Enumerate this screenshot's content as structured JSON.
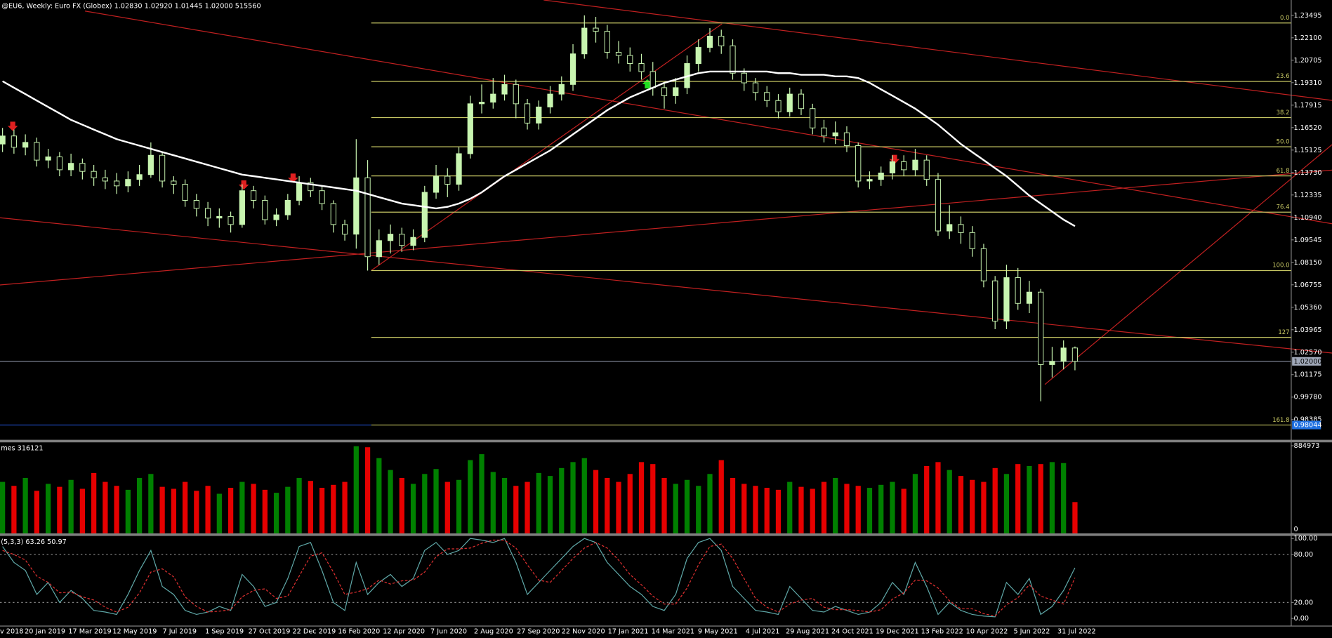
{
  "chart_data": {
    "type": "candlestick",
    "title": "@EU6, Weekly:  Euro FX (Globex)  1.02830 1.02920 1.01445 1.02000  515560",
    "open": [
      1.155,
      1.16,
      1.153,
      1.156,
      1.145,
      1.147,
      1.139,
      1.143,
      1.138,
      1.134,
      1.132,
      1.129,
      1.133,
      1.136,
      1.148,
      1.132,
      1.13,
      1.12,
      1.115,
      1.109,
      1.11,
      1.105,
      1.126,
      1.12,
      1.108,
      1.111,
      1.12,
      1.131,
      1.126,
      1.118,
      1.105,
      1.099,
      1.134,
      1.085,
      1.095,
      1.099,
      1.092,
      1.097,
      1.125,
      1.135,
      1.13,
      1.149,
      1.18,
      1.181,
      1.186,
      1.192,
      1.18,
      1.168,
      1.178,
      1.186,
      1.192,
      1.211,
      1.227,
      1.225,
      1.212,
      1.21,
      1.205,
      1.2,
      1.19,
      1.185,
      1.19,
      1.205,
      1.215,
      1.222,
      1.216,
      1.199,
      1.193,
      1.187,
      1.182,
      1.175,
      1.186,
      1.177,
      1.165,
      1.16,
      1.162,
      1.154,
      1.132,
      1.133,
      1.137,
      1.144,
      1.139,
      1.145,
      1.133,
      1.101,
      1.105,
      1.1,
      1.09,
      1.07,
      1.045,
      1.072,
      1.056,
      1.063,
      1.018,
      1.02,
      1.0283
    ],
    "high": [
      1.165,
      1.164,
      1.161,
      1.159,
      1.152,
      1.15,
      1.149,
      1.146,
      1.142,
      1.139,
      1.137,
      1.138,
      1.142,
      1.156,
      1.15,
      1.135,
      1.133,
      1.124,
      1.119,
      1.115,
      1.113,
      1.13,
      1.129,
      1.123,
      1.115,
      1.124,
      1.135,
      1.134,
      1.129,
      1.12,
      1.108,
      1.158,
      1.145,
      1.102,
      1.105,
      1.103,
      1.102,
      1.129,
      1.142,
      1.14,
      1.153,
      1.185,
      1.192,
      1.196,
      1.198,
      1.195,
      1.183,
      1.182,
      1.191,
      1.197,
      1.217,
      1.2349,
      1.234,
      1.229,
      1.219,
      1.215,
      1.211,
      1.206,
      1.193,
      1.196,
      1.21,
      1.22,
      1.227,
      1.226,
      1.22,
      1.202,
      1.196,
      1.191,
      1.186,
      1.19,
      1.189,
      1.18,
      1.17,
      1.169,
      1.166,
      1.156,
      1.138,
      1.141,
      1.148,
      1.148,
      1.152,
      1.148,
      1.137,
      1.117,
      1.11,
      1.104,
      1.093,
      1.073,
      1.08,
      1.078,
      1.07,
      1.065,
      1.029,
      1.033,
      1.0292
    ],
    "low": [
      1.15,
      1.149,
      1.148,
      1.141,
      1.14,
      1.135,
      1.135,
      1.133,
      1.129,
      1.127,
      1.124,
      1.125,
      1.129,
      1.134,
      1.128,
      1.124,
      1.116,
      1.11,
      1.104,
      1.103,
      1.1,
      1.103,
      1.115,
      1.105,
      1.104,
      1.108,
      1.117,
      1.122,
      1.114,
      1.1,
      1.095,
      1.09,
      1.0764,
      1.08,
      1.087,
      1.088,
      1.089,
      1.094,
      1.121,
      1.122,
      1.126,
      1.146,
      1.174,
      1.177,
      1.182,
      1.171,
      1.164,
      1.164,
      1.174,
      1.182,
      1.188,
      1.208,
      1.218,
      1.208,
      1.205,
      1.2,
      1.195,
      1.185,
      1.177,
      1.18,
      1.186,
      1.2,
      1.212,
      1.211,
      1.195,
      1.188,
      1.182,
      1.178,
      1.171,
      1.172,
      1.173,
      1.161,
      1.156,
      1.155,
      1.15,
      1.128,
      1.127,
      1.129,
      1.133,
      1.135,
      1.135,
      1.129,
      1.098,
      1.096,
      1.093,
      1.085,
      1.066,
      1.04,
      1.04,
      1.052,
      1.05,
      0.9952,
      1.01,
      1.015,
      1.01445
    ],
    "close": [
      1.16,
      1.153,
      1.156,
      1.145,
      1.147,
      1.139,
      1.143,
      1.138,
      1.134,
      1.132,
      1.129,
      1.133,
      1.136,
      1.148,
      1.132,
      1.13,
      1.12,
      1.115,
      1.109,
      1.11,
      1.105,
      1.126,
      1.12,
      1.108,
      1.111,
      1.12,
      1.131,
      1.126,
      1.118,
      1.105,
      1.099,
      1.134,
      1.085,
      1.095,
      1.099,
      1.092,
      1.097,
      1.125,
      1.135,
      1.13,
      1.149,
      1.18,
      1.181,
      1.186,
      1.192,
      1.18,
      1.168,
      1.178,
      1.186,
      1.192,
      1.211,
      1.227,
      1.225,
      1.212,
      1.21,
      1.205,
      1.2,
      1.19,
      1.185,
      1.19,
      1.205,
      1.215,
      1.222,
      1.216,
      1.199,
      1.193,
      1.187,
      1.182,
      1.175,
      1.186,
      1.177,
      1.165,
      1.16,
      1.162,
      1.154,
      1.132,
      1.133,
      1.137,
      1.144,
      1.139,
      1.145,
      1.133,
      1.101,
      1.105,
      1.1,
      1.09,
      1.07,
      1.045,
      1.072,
      1.056,
      1.063,
      1.018,
      1.02,
      1.0283,
      1.02
    ],
    "ma": [
      1.194,
      1.19,
      1.186,
      1.182,
      1.178,
      1.174,
      1.17,
      1.167,
      1.164,
      1.161,
      1.158,
      1.156,
      1.154,
      1.152,
      1.15,
      1.148,
      1.146,
      1.144,
      1.142,
      1.14,
      1.138,
      1.136,
      1.135,
      1.134,
      1.133,
      1.132,
      1.131,
      1.13,
      1.129,
      1.128,
      1.127,
      1.126,
      1.124,
      1.122,
      1.12,
      1.118,
      1.117,
      1.116,
      1.115,
      1.116,
      1.118,
      1.121,
      1.125,
      1.13,
      1.135,
      1.139,
      1.143,
      1.147,
      1.151,
      1.156,
      1.161,
      1.166,
      1.171,
      1.176,
      1.18,
      1.184,
      1.187,
      1.19,
      1.193,
      1.195,
      1.197,
      1.199,
      1.2,
      1.2,
      1.2,
      1.2,
      1.2,
      1.2,
      1.199,
      1.199,
      1.198,
      1.198,
      1.198,
      1.197,
      1.197,
      1.196,
      1.193,
      1.189,
      1.185,
      1.181,
      1.177,
      1.172,
      1.167,
      1.161,
      1.155,
      1.15,
      1.145,
      1.14,
      1.135,
      1.129,
      1.123,
      1.118,
      1.113,
      1.108,
      1.104
    ],
    "candle_color": "#c8f5b0",
    "ma_color": "#ffffff",
    "fib_color": "#c8c864",
    "grid": false,
    "ylim": [
      0.97127,
      1.24446
    ],
    "yticks": [
      {
        "value": 0.98385,
        "label": "0.98385"
      },
      {
        "value": 0.9978,
        "label": "0.99780"
      },
      1.01175,
      {
        "value": 1.0257,
        "label": "1.02570"
      },
      1.03965,
      {
        "value": 1.0536,
        "label": "1.05360"
      },
      1.06755,
      {
        "value": 1.0815,
        "label": "1.08150"
      },
      1.09545,
      {
        "value": 1.1094,
        "label": "1.10940"
      },
      1.12335,
      {
        "value": 1.1373,
        "label": "1.13730"
      },
      1.15125,
      {
        "value": 1.1652,
        "label": "1.16520"
      },
      1.17915,
      {
        "value": 1.1931,
        "label": "1.19310"
      },
      1.20705,
      {
        "value": 1.221,
        "label": "1.22100"
      },
      1.23495
    ],
    "x_labels": [
      "v 2018",
      "20 Jan 2019",
      "17 Mar 2019",
      "12 May 2019",
      "7 Jul 2019",
      "1 Sep 2019",
      "27 Oct 2019",
      "22 Dec 2019",
      "16 Feb 2020",
      "12 Apr 2020",
      "7 Jun 2020",
      "2 Aug 2020",
      "27 Sep 2020",
      "22 Nov 2020",
      "17 Jan 2021",
      "14 Mar 2021",
      "9 May 2021",
      "4 Jul 2021",
      "29 Aug 2021",
      "24 Oct 2021",
      "19 Dec 2021",
      "13 Feb 2022",
      "10 Apr 2022",
      "5 Jun 2022",
      "31 Jul 2022"
    ],
    "last_price": {
      "value": 1.02,
      "label": "1.02000"
    },
    "fib_levels": [
      {
        "label": "0.0",
        "price": 1.2302
      },
      {
        "label": "23.6",
        "price": 1.1939
      },
      {
        "label": "38.2",
        "price": 1.1714
      },
      {
        "label": "50.0",
        "price": 1.1533
      },
      {
        "label": "61.8",
        "price": 1.1352
      },
      {
        "label": "76.4",
        "price": 1.1127
      },
      {
        "label": "100.0",
        "price": 1.0764
      },
      {
        "label": "127",
        "price": 1.0349
      },
      {
        "label": "161.8",
        "price": 0.98044,
        "price_label": "0.98044"
      }
    ],
    "volume": {
      "label": "mes 316121",
      "values": [
        520000,
        480000,
        560000,
        430000,
        500000,
        470000,
        540000,
        450000,
        610000,
        520000,
        480000,
        440000,
        560000,
        600000,
        470000,
        450000,
        520000,
        430000,
        480000,
        400000,
        460000,
        520000,
        500000,
        440000,
        410000,
        470000,
        560000,
        530000,
        460000,
        490000,
        520000,
        880000,
        870000,
        760000,
        640000,
        560000,
        500000,
        600000,
        650000,
        520000,
        540000,
        740000,
        800000,
        620000,
        560000,
        480000,
        520000,
        610000,
        580000,
        660000,
        720000,
        760000,
        640000,
        560000,
        520000,
        600000,
        720000,
        700000,
        560000,
        500000,
        540000,
        480000,
        600000,
        740000,
        560000,
        500000,
        480000,
        460000,
        440000,
        520000,
        470000,
        450000,
        520000,
        560000,
        500000,
        480000,
        460000,
        490000,
        520000,
        450000,
        600000,
        680000,
        720000,
        640000,
        580000,
        540000,
        520000,
        660000,
        600000,
        700000,
        680000,
        700000,
        720000,
        710000,
        316121
      ],
      "ylim": [
        0,
        884973
      ],
      "yticks": [
        0,
        884973
      ],
      "up_color": "#008000",
      "down_color": "#e60000"
    },
    "stochastic": {
      "label": "(5,3,3) 63.26 50.97",
      "k": [
        90,
        70,
        60,
        30,
        45,
        20,
        35,
        25,
        10,
        8,
        5,
        30,
        60,
        85,
        40,
        30,
        10,
        5,
        8,
        15,
        10,
        55,
        40,
        15,
        20,
        50,
        90,
        95,
        60,
        20,
        10,
        70,
        30,
        45,
        55,
        40,
        50,
        85,
        95,
        80,
        85,
        100,
        98,
        95,
        100,
        70,
        30,
        45,
        60,
        75,
        90,
        100,
        95,
        70,
        55,
        40,
        30,
        15,
        10,
        30,
        75,
        95,
        100,
        85,
        40,
        25,
        10,
        8,
        5,
        40,
        25,
        10,
        8,
        15,
        10,
        5,
        8,
        20,
        45,
        30,
        70,
        40,
        5,
        20,
        10,
        5,
        3,
        2,
        45,
        30,
        50,
        5,
        15,
        35,
        63.26
      ],
      "d": [
        85,
        80,
        73,
        53,
        45,
        32,
        33,
        27,
        23,
        14,
        8,
        14,
        32,
        58,
        62,
        52,
        27,
        15,
        8,
        9,
        11,
        27,
        35,
        37,
        25,
        28,
        53,
        78,
        82,
        58,
        30,
        33,
        37,
        48,
        43,
        47,
        48,
        58,
        77,
        87,
        87,
        88,
        94,
        98,
        98,
        88,
        67,
        48,
        45,
        60,
        75,
        88,
        95,
        88,
        73,
        55,
        42,
        28,
        18,
        18,
        38,
        67,
        90,
        93,
        75,
        50,
        25,
        14,
        8,
        18,
        23,
        25,
        14,
        11,
        11,
        10,
        8,
        11,
        24,
        32,
        48,
        47,
        38,
        22,
        12,
        12,
        6,
        3,
        17,
        26,
        42,
        28,
        23,
        18,
        50.97
      ],
      "k_color": "#5fa8a8",
      "d_color": "#e03030",
      "ylim": [
        0,
        100
      ],
      "yticks": [
        {
          "value": 0,
          "label": "0.00"
        },
        {
          "value": 20,
          "label": "20.00"
        },
        {
          "value": 80,
          "label": "80.00"
        },
        {
          "value": 100,
          "label": "100.00"
        }
      ]
    }
  }
}
